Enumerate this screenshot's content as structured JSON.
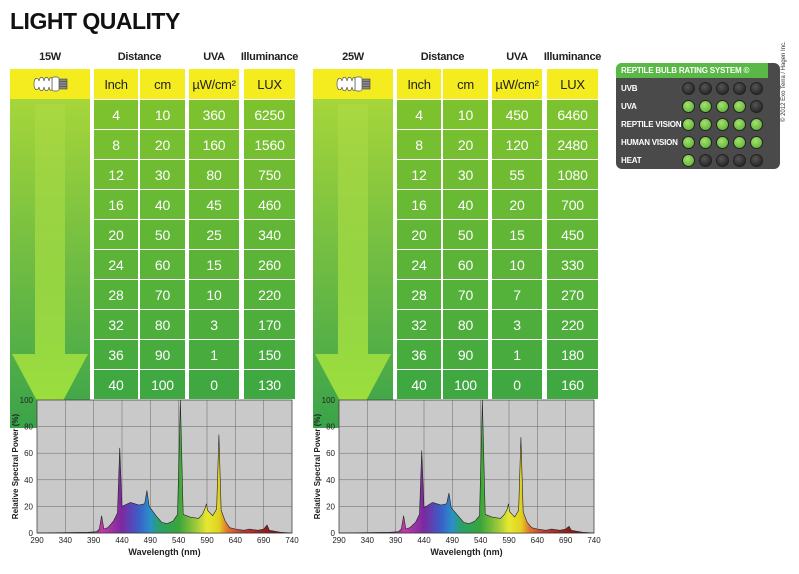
{
  "title": "LIGHT QUALITY",
  "headers": {
    "distance": "Distance",
    "uva": "UVA",
    "illuminance": "Illuminance"
  },
  "units": {
    "inch": "Inch",
    "cm": "cm",
    "uva": "µW/cm²",
    "lux": "LUX"
  },
  "tables": [
    {
      "wattage": "15W",
      "rows": [
        {
          "inch": "4",
          "cm": "10",
          "uva": "360",
          "lux": "6250"
        },
        {
          "inch": "8",
          "cm": "20",
          "uva": "160",
          "lux": "1560"
        },
        {
          "inch": "12",
          "cm": "30",
          "uva": "80",
          "lux": "750"
        },
        {
          "inch": "16",
          "cm": "40",
          "uva": "45",
          "lux": "460"
        },
        {
          "inch": "20",
          "cm": "50",
          "uva": "25",
          "lux": "340"
        },
        {
          "inch": "24",
          "cm": "60",
          "uva": "15",
          "lux": "260"
        },
        {
          "inch": "28",
          "cm": "70",
          "uva": "10",
          "lux": "220"
        },
        {
          "inch": "32",
          "cm": "80",
          "uva": "3",
          "lux": "170"
        },
        {
          "inch": "36",
          "cm": "90",
          "uva": "1",
          "lux": "150"
        },
        {
          "inch": "40",
          "cm": "100",
          "uva": "0",
          "lux": "130"
        }
      ]
    },
    {
      "wattage": "25W",
      "rows": [
        {
          "inch": "4",
          "cm": "10",
          "uva": "450",
          "lux": "6460"
        },
        {
          "inch": "8",
          "cm": "20",
          "uva": "120",
          "lux": "2480"
        },
        {
          "inch": "12",
          "cm": "30",
          "uva": "55",
          "lux": "1080"
        },
        {
          "inch": "16",
          "cm": "40",
          "uva": "20",
          "lux": "700"
        },
        {
          "inch": "20",
          "cm": "50",
          "uva": "15",
          "lux": "450"
        },
        {
          "inch": "24",
          "cm": "60",
          "uva": "10",
          "lux": "330"
        },
        {
          "inch": "28",
          "cm": "70",
          "uva": "7",
          "lux": "270"
        },
        {
          "inch": "32",
          "cm": "80",
          "uva": "3",
          "lux": "220"
        },
        {
          "inch": "36",
          "cm": "90",
          "uva": "1",
          "lux": "180"
        },
        {
          "inch": "40",
          "cm": "100",
          "uva": "0",
          "lux": "160"
        }
      ]
    }
  ],
  "rating": {
    "title": "REPTILE BULB RATING SYSTEM ©",
    "max": 5,
    "rows": [
      {
        "label": "UVB",
        "value": 0
      },
      {
        "label": "UVA",
        "value": 4
      },
      {
        "label": "REPTILE VISION",
        "value": 5
      },
      {
        "label": "HUMAN VISION",
        "value": 5
      },
      {
        "label": "HEAT",
        "value": 1
      }
    ]
  },
  "copyright": "© 2012 Exo Terra / Hagen Inc.",
  "colors": {
    "yellow": "#f4ec1f",
    "green_top": "#a6d63a",
    "green_bottom": "#3aa34a",
    "rating_bg": "#4a4a4a",
    "rating_accent": "#5ab946",
    "plot_bg": "#c9c9c9"
  },
  "chart_data": [
    {
      "type": "area",
      "title": "",
      "xlabel": "Wavelength (nm)",
      "ylabel": "Relative Spectral Power (%)",
      "xlim": [
        290,
        740
      ],
      "ylim": [
        0,
        100
      ],
      "xticks": [
        290,
        340,
        390,
        440,
        490,
        540,
        590,
        640,
        690,
        740
      ],
      "yticks": [
        0,
        20,
        40,
        60,
        80,
        100
      ],
      "grid": true,
      "points": [
        [
          290,
          0
        ],
        [
          380,
          0.5
        ],
        [
          395,
          1
        ],
        [
          400,
          3
        ],
        [
          404,
          13
        ],
        [
          408,
          3
        ],
        [
          415,
          4
        ],
        [
          425,
          9
        ],
        [
          432,
          15
        ],
        [
          436,
          64
        ],
        [
          440,
          20
        ],
        [
          455,
          23
        ],
        [
          470,
          21
        ],
        [
          480,
          22
        ],
        [
          484,
          32
        ],
        [
          488,
          20
        ],
        [
          500,
          13
        ],
        [
          510,
          8
        ],
        [
          520,
          7
        ],
        [
          530,
          9
        ],
        [
          538,
          14
        ],
        [
          543,
          100
        ],
        [
          548,
          14
        ],
        [
          560,
          12
        ],
        [
          575,
          11
        ],
        [
          582,
          14
        ],
        [
          587,
          19
        ],
        [
          589,
          22
        ],
        [
          591,
          17
        ],
        [
          600,
          13
        ],
        [
          607,
          18
        ],
        [
          611,
          74
        ],
        [
          615,
          17
        ],
        [
          622,
          9
        ],
        [
          630,
          4
        ],
        [
          640,
          3
        ],
        [
          655,
          2
        ],
        [
          665,
          3
        ],
        [
          680,
          2
        ],
        [
          690,
          3
        ],
        [
          696,
          6
        ],
        [
          700,
          2
        ],
        [
          720,
          0.5
        ],
        [
          740,
          0
        ]
      ]
    },
    {
      "type": "area",
      "title": "",
      "xlabel": "Wavelength (nm)",
      "ylabel": "Relative Spectral Power (%)",
      "xlim": [
        290,
        740
      ],
      "ylim": [
        0,
        100
      ],
      "xticks": [
        290,
        340,
        390,
        440,
        490,
        540,
        590,
        640,
        690,
        740
      ],
      "yticks": [
        0,
        20,
        40,
        60,
        80,
        100
      ],
      "grid": true,
      "points": [
        [
          290,
          0
        ],
        [
          380,
          0.5
        ],
        [
          395,
          1
        ],
        [
          400,
          3
        ],
        [
          404,
          13
        ],
        [
          408,
          3
        ],
        [
          415,
          4
        ],
        [
          425,
          8
        ],
        [
          432,
          14
        ],
        [
          436,
          62
        ],
        [
          440,
          19
        ],
        [
          455,
          23
        ],
        [
          470,
          21
        ],
        [
          480,
          22
        ],
        [
          484,
          30
        ],
        [
          488,
          19
        ],
        [
          500,
          13
        ],
        [
          510,
          8
        ],
        [
          520,
          7
        ],
        [
          530,
          9
        ],
        [
          538,
          13
        ],
        [
          543,
          100
        ],
        [
          548,
          14
        ],
        [
          560,
          12
        ],
        [
          575,
          11
        ],
        [
          582,
          14
        ],
        [
          587,
          18
        ],
        [
          589,
          22
        ],
        [
          591,
          16
        ],
        [
          600,
          12
        ],
        [
          607,
          17
        ],
        [
          611,
          72
        ],
        [
          615,
          16
        ],
        [
          622,
          8
        ],
        [
          630,
          4
        ],
        [
          640,
          3
        ],
        [
          655,
          2
        ],
        [
          665,
          3
        ],
        [
          680,
          2
        ],
        [
          690,
          3
        ],
        [
          696,
          5
        ],
        [
          700,
          2
        ],
        [
          720,
          0.5
        ],
        [
          740,
          0
        ]
      ]
    }
  ]
}
